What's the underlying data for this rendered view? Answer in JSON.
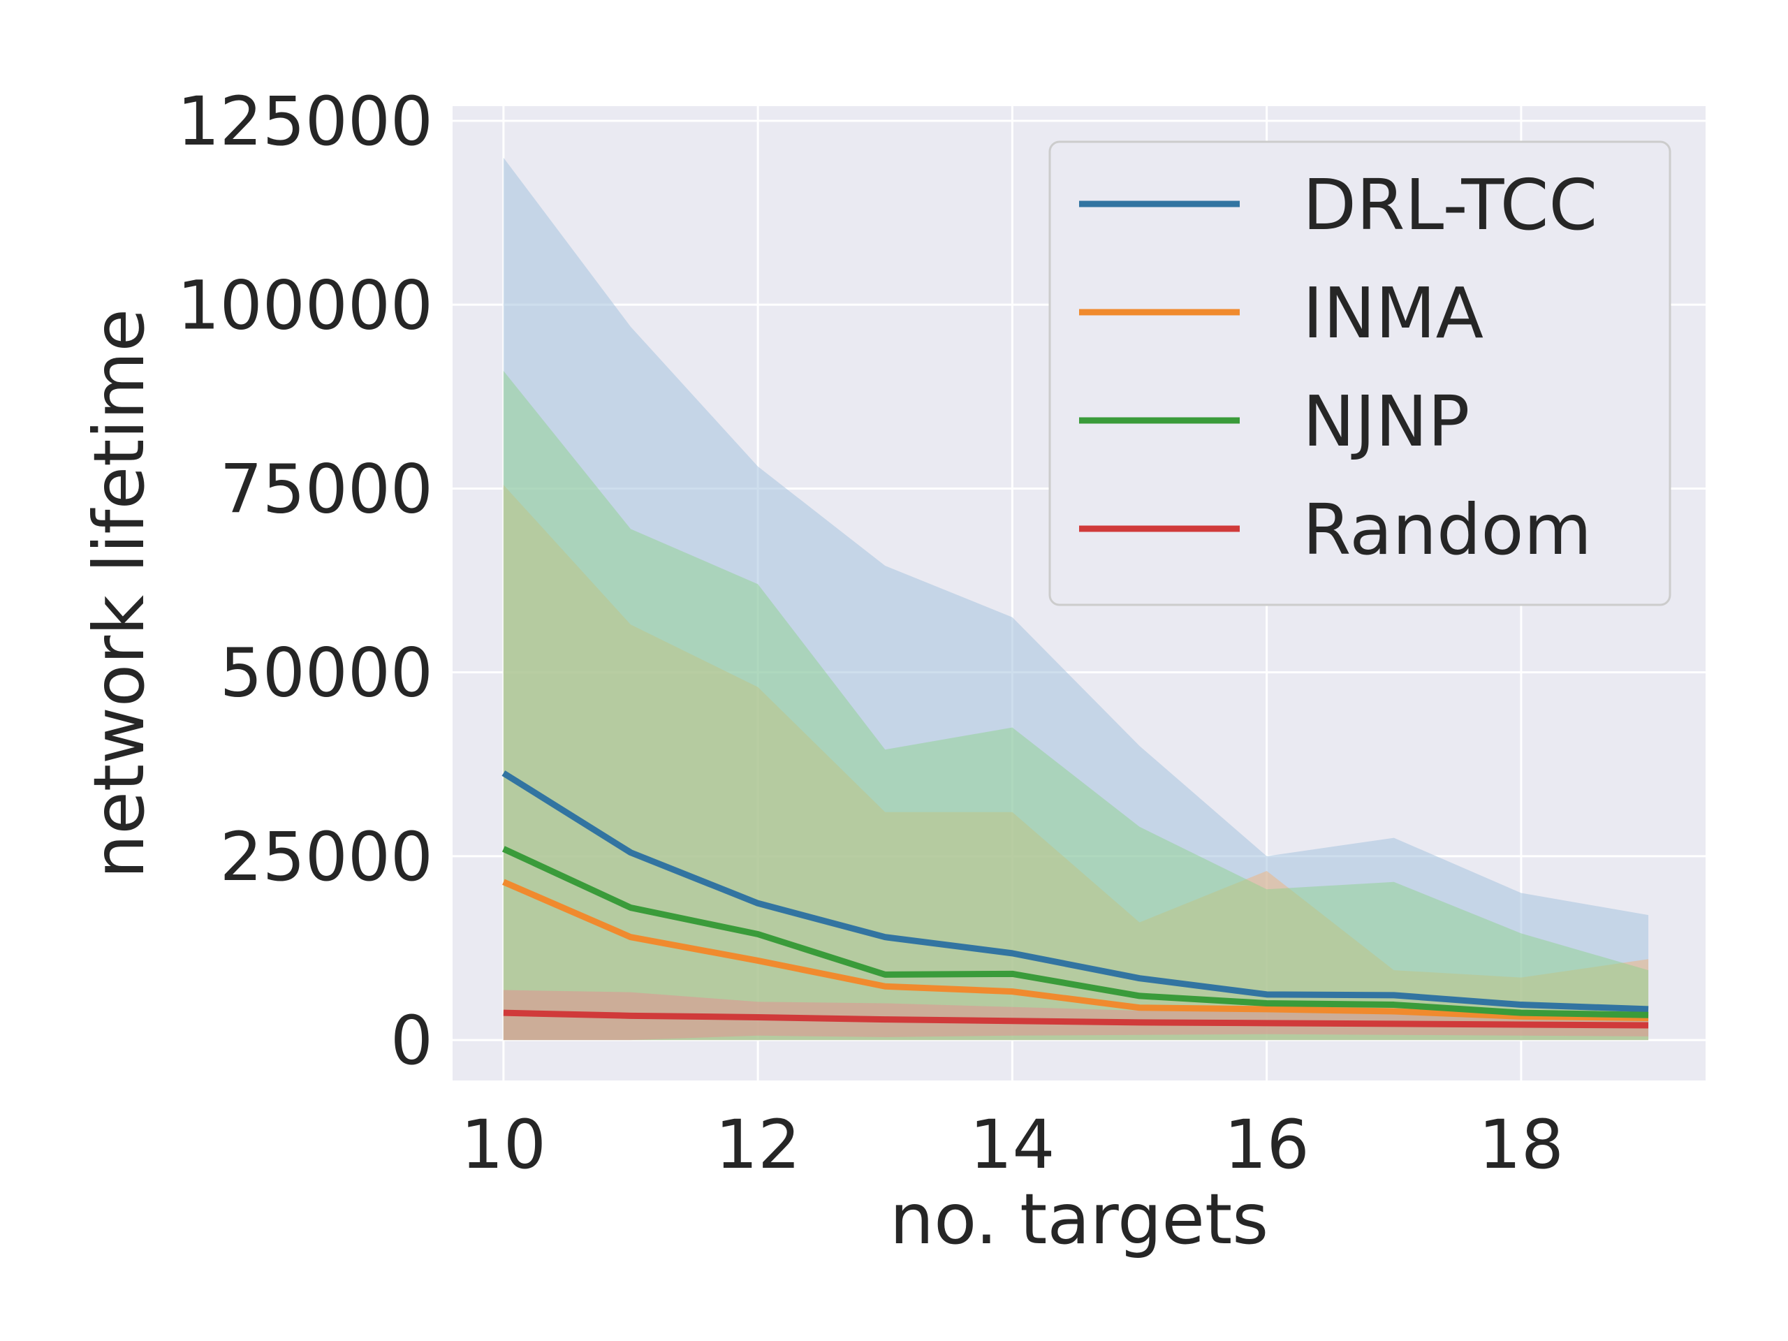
{
  "chart_data": {
    "type": "line",
    "xlabel": "no. targets",
    "ylabel": "network lifetime",
    "xlim": [
      9.6,
      19.45
    ],
    "ylim": [
      -5500,
      127000
    ],
    "xticks": [
      10,
      12,
      14,
      16,
      18
    ],
    "yticks": [
      0,
      25000,
      50000,
      75000,
      100000,
      125000
    ],
    "grid": true,
    "legend_position": "top-right",
    "x": [
      10,
      11,
      12,
      13,
      14,
      15,
      16,
      17,
      18,
      19
    ],
    "series": [
      {
        "name": "DRL-TCC",
        "color": "#3274a1",
        "band_color": "#a6c2de",
        "values": [
          36300,
          25500,
          18600,
          14000,
          11800,
          8400,
          6200,
          6100,
          4800,
          4200
        ],
        "lower": [
          0,
          0,
          0,
          0,
          0,
          0,
          0,
          0,
          0,
          0
        ],
        "upper": [
          120000,
          97000,
          78000,
          64500,
          57500,
          40000,
          25000,
          27500,
          20000,
          17000
        ]
      },
      {
        "name": "INMA",
        "color": "#f08a2e",
        "band_color": "#f2b47c",
        "values": [
          21500,
          14000,
          10800,
          7300,
          6600,
          4400,
          4200,
          3900,
          3200,
          3000
        ],
        "lower": [
          0,
          0,
          0,
          0,
          0,
          0,
          0,
          0,
          0,
          0
        ],
        "upper": [
          75500,
          56500,
          48000,
          31000,
          31000,
          16000,
          23000,
          9500,
          8500,
          11000
        ]
      },
      {
        "name": "NJNP",
        "color": "#3a9b3a",
        "band_color": "#8fd18f",
        "values": [
          26000,
          18000,
          14400,
          8900,
          9000,
          6000,
          5000,
          4800,
          3700,
          3400
        ],
        "lower": [
          0,
          0,
          0,
          0,
          0,
          0,
          0,
          0,
          0,
          0
        ],
        "upper": [
          91000,
          69500,
          62000,
          39500,
          42500,
          29000,
          20500,
          21500,
          14500,
          9500
        ]
      },
      {
        "name": "Random",
        "color": "#d03a3a",
        "band_color": "#e48f8f",
        "values": [
          3700,
          3300,
          3100,
          2800,
          2600,
          2400,
          2300,
          2200,
          2100,
          2000
        ],
        "lower": [
          0,
          0,
          600,
          400,
          600,
          700,
          800,
          700,
          600,
          500
        ],
        "upper": [
          6800,
          6500,
          5200,
          5000,
          4500,
          4000,
          3800,
          3500,
          3200,
          3000
        ]
      }
    ]
  }
}
